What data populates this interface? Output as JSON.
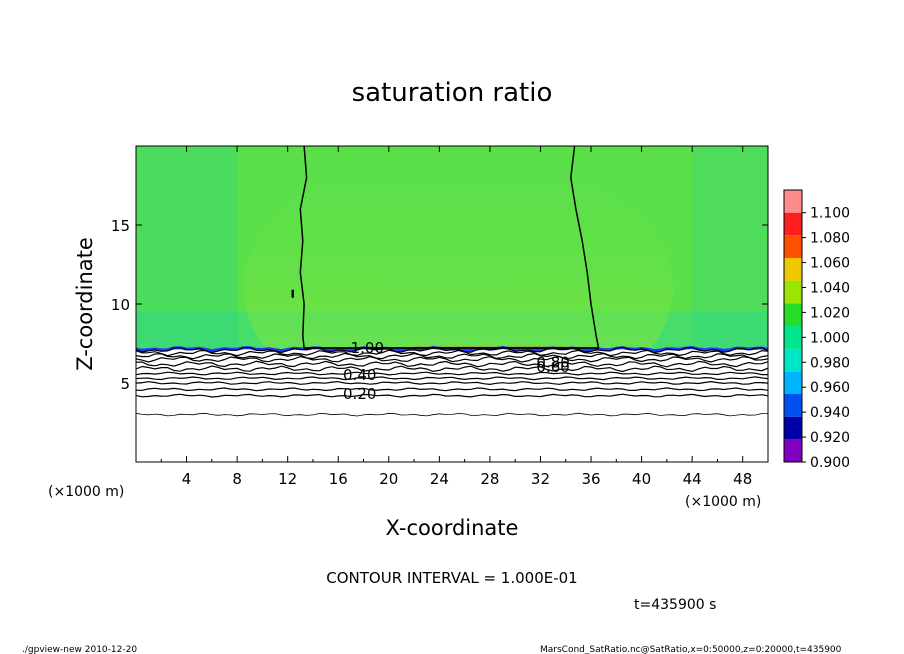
{
  "chart_data": {
    "type": "heatmap",
    "title": "saturation ratio",
    "xlabel": "X-coordinate",
    "ylabel": "Z-coordinate",
    "x_unit": "(×1000 m)",
    "y_unit": "(×1000 m)",
    "xlim": [
      0,
      50
    ],
    "ylim": [
      0,
      20
    ],
    "x_ticks": [
      4,
      8,
      12,
      16,
      20,
      24,
      28,
      32,
      36,
      40,
      44,
      48
    ],
    "y_ticks": [
      5,
      10,
      15
    ],
    "colorbar": {
      "levels": [
        "0.900",
        "0.920",
        "0.940",
        "0.960",
        "0.980",
        "1.000",
        "1.020",
        "1.040",
        "1.060",
        "1.080",
        "1.100"
      ],
      "colors": [
        "#7f00bf",
        "#0000a8",
        "#0050f0",
        "#00b4ff",
        "#00e6c8",
        "#00e68c",
        "#28dc28",
        "#9be600",
        "#f0c800",
        "#ff5000",
        "#ff1e1e",
        "#ff8c8c"
      ]
    },
    "contour_labels": [
      {
        "text": "1.00",
        "x": 18.3,
        "z": 7.2
      },
      {
        "text": "0.40",
        "x": 17.7,
        "z": 5.5
      },
      {
        "text": "0.20",
        "x": 17.7,
        "z": 4.3
      },
      {
        "text": "0.80",
        "x": 33.0,
        "z": 6.3
      },
      {
        "text": "0.60",
        "x": 33.0,
        "z": 6.0
      }
    ],
    "saturation_boundaries": [
      {
        "name": "left",
        "points": [
          [
            13.3,
            20
          ],
          [
            13.5,
            18
          ],
          [
            13.0,
            16
          ],
          [
            13.2,
            14
          ],
          [
            13.0,
            12
          ],
          [
            13.3,
            10
          ],
          [
            13.2,
            8
          ],
          [
            13.3,
            7.2
          ]
        ]
      },
      {
        "name": "right",
        "points": [
          [
            34.7,
            20
          ],
          [
            34.4,
            18
          ],
          [
            34.8,
            16
          ],
          [
            35.3,
            14
          ],
          [
            35.7,
            12
          ],
          [
            36.0,
            10
          ],
          [
            36.4,
            8
          ],
          [
            36.6,
            7.2
          ]
        ]
      }
    ],
    "isolines_z": [
      7.1,
      6.9,
      6.7,
      6.5,
      6.2,
      5.9,
      5.6,
      5.3,
      5.0,
      4.6,
      4.2,
      3.0
    ]
  },
  "footer": {
    "contour_interval": "CONTOUR INTERVAL = 1.000E-01",
    "time": "t=435900  s",
    "left_note": "./gpview-new   2010-12-20",
    "right_note": "MarsCond_SatRatio.nc@SatRatio,x=0:50000,z=0:20000,t=435900"
  }
}
